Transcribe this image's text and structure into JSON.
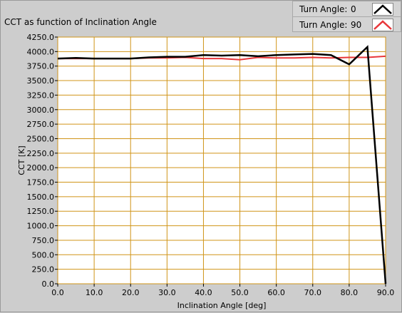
{
  "chart_data": {
    "type": "line",
    "title": "CCT as function of Inclination Angle",
    "xlabel": "Inclination Angle [deg]",
    "ylabel": "CCT [K]",
    "xlim": [
      0,
      90
    ],
    "ylim": [
      0,
      4250
    ],
    "x_ticks": [
      0,
      10,
      20,
      30,
      40,
      50,
      60,
      70,
      80,
      90
    ],
    "x_tick_labels": [
      "0.0",
      "10.0",
      "20.0",
      "30.0",
      "40.0",
      "50.0",
      "60.0",
      "70.0",
      "80.0",
      "90.0"
    ],
    "y_ticks": [
      0,
      250,
      500,
      750,
      1000,
      1250,
      1500,
      1750,
      2000,
      2250,
      2500,
      2750,
      3000,
      3250,
      3500,
      3750,
      4000,
      4250
    ],
    "y_tick_labels": [
      "0.0",
      "250.0",
      "500.0",
      "750.0",
      "1000.0",
      "1250.0",
      "1500.0",
      "1750.0",
      "2000.0",
      "2250.0",
      "2500.0",
      "2750.0",
      "3000.0",
      "3250.0",
      "3500.0",
      "3750.0",
      "4000.0",
      "4250.0"
    ],
    "grid": true,
    "plot_background": "#ffffff",
    "grid_color": "#d09418",
    "legend_position": "top-right",
    "series": [
      {
        "name": "Turn Angle: 0",
        "color": "#000000",
        "x": [
          0,
          5,
          10,
          15,
          20,
          25,
          30,
          35,
          40,
          45,
          50,
          55,
          60,
          65,
          70,
          75,
          80,
          85,
          90
        ],
        "y": [
          3880,
          3890,
          3880,
          3880,
          3880,
          3900,
          3910,
          3910,
          3940,
          3930,
          3940,
          3920,
          3940,
          3950,
          3960,
          3940,
          3780,
          4080,
          0
        ]
      },
      {
        "name": "Turn Angle: 90",
        "color": "#e8373a",
        "x": [
          0,
          5,
          10,
          15,
          20,
          25,
          30,
          35,
          40,
          45,
          50,
          55,
          60,
          65,
          70,
          75,
          80,
          85,
          90
        ],
        "y": [
          3880,
          3880,
          3880,
          3880,
          3880,
          3890,
          3890,
          3900,
          3880,
          3880,
          3860,
          3900,
          3890,
          3890,
          3900,
          3890,
          3900,
          3900,
          3920
        ]
      }
    ]
  },
  "legend": {
    "items": [
      {
        "label": "Turn Angle:",
        "value": "0",
        "color": "#000000"
      },
      {
        "label": "Turn Angle:",
        "value": "90",
        "color": "#e8373a"
      }
    ]
  }
}
